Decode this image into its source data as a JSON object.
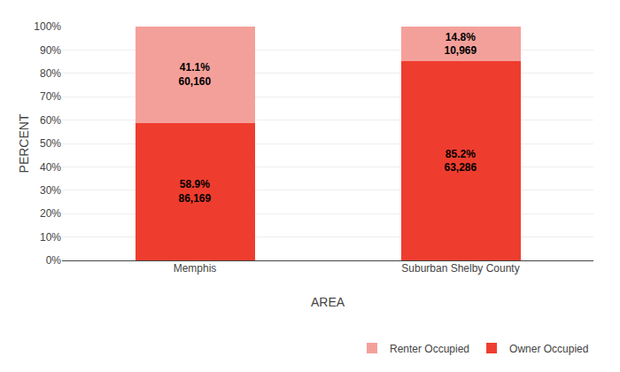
{
  "chart_data": {
    "type": "bar",
    "stacked": true,
    "categories": [
      "Memphis",
      "Suburban Shelby County"
    ],
    "series": [
      {
        "name": "Owner Occupied",
        "color": "#EE3D2E",
        "values": [
          58.9,
          85.2
        ],
        "value_labels": [
          "58.9%\n86,169",
          "85.2%\n63,286"
        ]
      },
      {
        "name": "Renter Occupied",
        "color": "#F4A09A",
        "values": [
          41.1,
          14.8
        ],
        "value_labels": [
          "41.1%\n60,160",
          "14.8%\n10,969"
        ]
      }
    ],
    "xlabel": "AREA",
    "ylabel": "PERCENT",
    "ylim": [
      0,
      100
    ],
    "yticks": [
      {
        "value": 0,
        "label": "0%"
      },
      {
        "value": 10,
        "label": "10%"
      },
      {
        "value": 20,
        "label": "20%"
      },
      {
        "value": 30,
        "label": "30%"
      },
      {
        "value": 40,
        "label": "40%"
      },
      {
        "value": 50,
        "label": "50%"
      },
      {
        "value": 60,
        "label": "60%"
      },
      {
        "value": 70,
        "label": "70%"
      },
      {
        "value": 80,
        "label": "80%"
      },
      {
        "value": 90,
        "label": "90%"
      },
      {
        "value": 100,
        "label": "100%"
      }
    ],
    "grid": true,
    "data_labels": true,
    "legend": "lower right"
  }
}
